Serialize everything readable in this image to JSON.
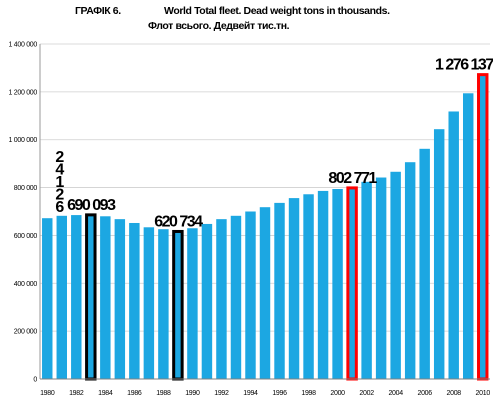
{
  "chart_data": {
    "type": "bar",
    "title_line1": "ГРАФІК 6.",
    "title_line1b": "World Total fleet. Dead weight tons in thousands.",
    "title_line2": "Флот всього. Дедвейт тис.тн.",
    "years": [
      1980,
      1981,
      1982,
      1983,
      1984,
      1985,
      1986,
      1987,
      1988,
      1989,
      1990,
      1991,
      1992,
      1993,
      1994,
      1995,
      1996,
      1997,
      1998,
      1999,
      2000,
      2001,
      2002,
      2003,
      2004,
      2005,
      2006,
      2007,
      2008,
      2009,
      2010
    ],
    "values": [
      672000,
      682000,
      685000,
      690093,
      680000,
      668000,
      652000,
      634000,
      626000,
      620734,
      630000,
      648000,
      668000,
      682000,
      700000,
      718000,
      736000,
      756000,
      772000,
      786000,
      794000,
      802771,
      824000,
      842000,
      866000,
      906000,
      962000,
      1044000,
      1118000,
      1194000,
      1276137
    ],
    "x_tick_labels": [
      "1980",
      "1982",
      "1984",
      "1986",
      "1988",
      "1990",
      "1992",
      "1994",
      "1996",
      "1998",
      "2000",
      "2002",
      "2004",
      "2006",
      "2008",
      "2010"
    ],
    "y_tick_labels": [
      "0",
      "200 000",
      "400 000",
      "600 000",
      "800 000",
      "1 000 000",
      "1 200 000",
      "1 400 000"
    ],
    "ylim": [
      0,
      1400000
    ],
    "highlights": [
      {
        "year": 1983,
        "outline": "#000000",
        "label": "690 093"
      },
      {
        "year": 1989,
        "outline": "#000000",
        "label": "620 734"
      },
      {
        "year": 2001,
        "outline": "#ff0000",
        "label": "802 771"
      },
      {
        "year": 2010,
        "outline": "#ff0000",
        "label": "1 276 137"
      }
    ],
    "stacked_label_chars": [
      "2",
      "4",
      "1",
      "2",
      "6"
    ],
    "stacked_label_year": 1981,
    "bar_color": "#1ca7e2",
    "grid": true,
    "legend": "none"
  }
}
